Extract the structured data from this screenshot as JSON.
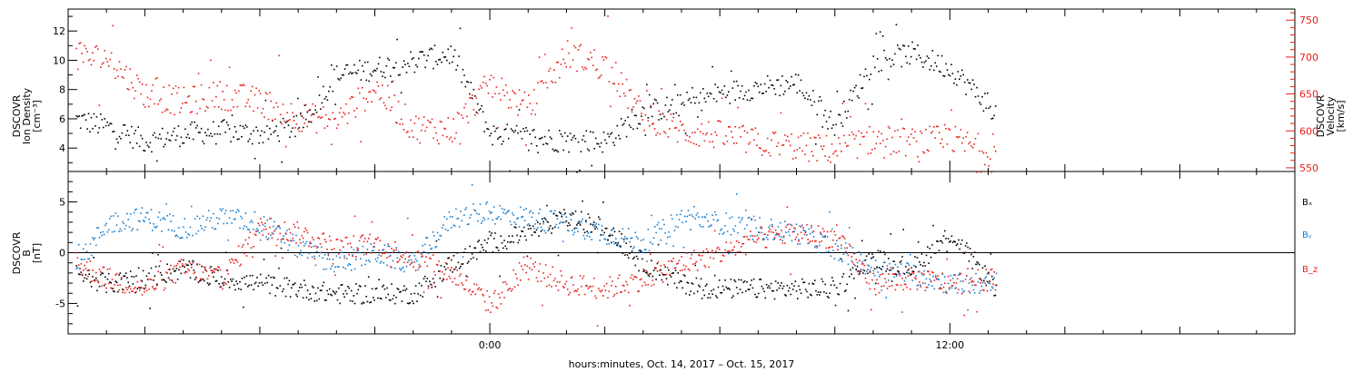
{
  "title": "",
  "xlabel": "hours:minutes, Oct. 14, 2017 – Oct. 15, 2017",
  "colors": {
    "black": "#000000",
    "red": "#e8201c",
    "blue": "#1a7fd0"
  },
  "chart_data": [
    {
      "type": "scatter",
      "panel": "density-velocity",
      "xlim": [
        "2017-10-14 T-0:00",
        "2017-10-15 T12:00"
      ],
      "xticks": [
        {
          "x_hours": 0,
          "label": "0:00"
        },
        {
          "x_hours": 12,
          "label": "12:00"
        }
      ],
      "xrange_hours": [
        -11,
        21
      ],
      "left_axis": {
        "label_lines": [
          "DSCOVR",
          "Ion Density",
          "[cm⁻³]"
        ],
        "ylim": [
          2.4,
          13.5
        ],
        "ticks": [
          4,
          6,
          8,
          10,
          12
        ]
      },
      "right_axis": {
        "label_lines": [
          "DSCOVR",
          "Velocity",
          "[km/s]"
        ],
        "ylim": [
          545,
          765
        ],
        "ticks": [
          550,
          600,
          650,
          700,
          750
        ]
      },
      "series": [
        {
          "color": "black",
          "axis": "left",
          "x_hours": [
            -10.8,
            -10,
            -9,
            -8,
            -7,
            -6,
            -5,
            -4,
            -3,
            -2,
            -1,
            0,
            1,
            2,
            3,
            4,
            5,
            6,
            7,
            8,
            9,
            10,
            11,
            12,
            13.2
          ],
          "y": [
            6.0,
            5.5,
            4.5,
            5.0,
            5.2,
            5.0,
            5.5,
            9.0,
            9.5,
            10.0,
            10.5,
            5.0,
            4.8,
            4.5,
            4.5,
            6.5,
            7.0,
            7.8,
            8.2,
            8.5,
            5.5,
            10.0,
            10.5,
            9.5,
            6.5
          ]
        },
        {
          "color": "red",
          "axis": "right",
          "x_hours": [
            -10.8,
            -10,
            -9,
            -8,
            -7,
            -6,
            -5,
            -4,
            -3,
            -2,
            -1,
            0,
            1,
            2,
            3,
            4,
            5,
            6,
            7,
            8,
            9,
            10,
            11,
            12,
            13.2
          ],
          "y": [
            700,
            700,
            650,
            640,
            650,
            640,
            620,
            615,
            660,
            605,
            602,
            665,
            630,
            705,
            690,
            620,
            600,
            595,
            585,
            580,
            575,
            590,
            585,
            590,
            570
          ]
        }
      ]
    },
    {
      "type": "scatter",
      "panel": "magnetic-field",
      "xrange_hours": [
        -11,
        21
      ],
      "left_axis": {
        "label_lines": [
          "DSCOVR",
          "B",
          "[nT]"
        ],
        "ylim": [
          -8,
          8
        ],
        "ticks": [
          -5,
          0,
          5
        ]
      },
      "legend": [
        "Bₓ",
        "Bᵧ",
        "B_z"
      ],
      "legend_placement": "right",
      "series": [
        {
          "name": "Bₓ",
          "color": "black",
          "x_hours": [
            -10.8,
            -10,
            -9,
            -8,
            -7,
            -6,
            -5,
            -4,
            -3,
            -2,
            -1,
            0,
            1,
            2,
            3,
            4,
            5,
            6,
            7,
            8,
            9,
            10,
            11,
            12,
            13.2
          ],
          "y": [
            -2.0,
            -3.0,
            -2.5,
            -1.5,
            -2.5,
            -3.0,
            -3.5,
            -4.0,
            -4.0,
            -4.0,
            -1.0,
            1.0,
            2.0,
            3.5,
            2.5,
            -1.0,
            -3.0,
            -3.5,
            -3.5,
            -3.5,
            -3.5,
            -0.5,
            -1.5,
            2.0,
            -3.5
          ]
        },
        {
          "name": "Bᵧ",
          "color": "blue",
          "x_hours": [
            -10.8,
            -10,
            -9,
            -8,
            -7,
            -6,
            -5,
            -4,
            -3,
            -2,
            -1,
            0,
            1,
            2,
            3,
            4,
            5,
            6,
            7,
            8,
            9,
            10,
            11,
            12,
            13.2
          ],
          "y": [
            -1.5,
            3.0,
            3.5,
            2.5,
            3.5,
            3.0,
            0.5,
            -1.0,
            0.0,
            -1.0,
            3.5,
            4.0,
            3.5,
            3.0,
            2.0,
            1.0,
            3.5,
            3.0,
            2.5,
            2.0,
            0.5,
            -1.5,
            -2.0,
            -3.0,
            -3.0
          ]
        },
        {
          "name": "B_z",
          "color": "red",
          "x_hours": [
            -10.8,
            -10,
            -9,
            -8,
            -7,
            -6,
            -5,
            -4,
            -3,
            -2,
            -1,
            0,
            1,
            2,
            3,
            4,
            5,
            6,
            7,
            8,
            9,
            10,
            11,
            12,
            13.2
          ],
          "y": [
            -1.0,
            -2.5,
            -3.5,
            -1.5,
            -2.5,
            2.5,
            2.0,
            0.5,
            1.0,
            -0.5,
            -2.0,
            -5.0,
            -1.5,
            -3.0,
            -3.5,
            -2.5,
            -1.0,
            0.0,
            1.5,
            2.0,
            1.5,
            -3.0,
            -2.5,
            -3.0,
            -2.5
          ]
        }
      ]
    }
  ]
}
